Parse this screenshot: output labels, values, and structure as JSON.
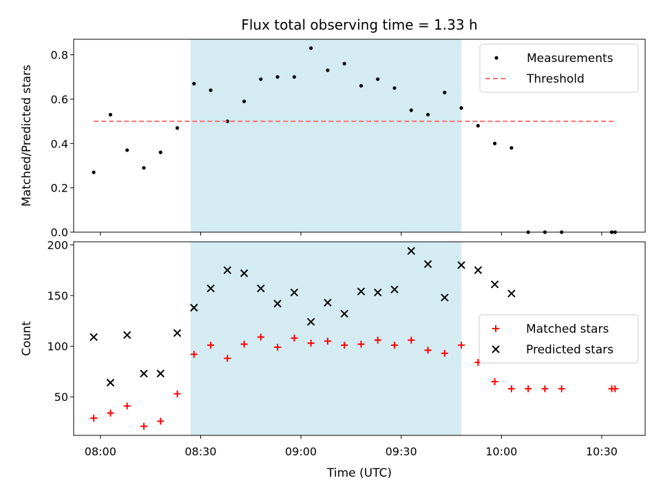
{
  "chart_data": [
    {
      "type": "scatter",
      "title": "Flux total observing time = 1.33 h",
      "ylabel": "Matched/Predicted stars",
      "ylim": [
        0,
        0.87
      ],
      "yticks": [
        0.0,
        0.2,
        0.4,
        0.6,
        0.8
      ],
      "ytick_labels": [
        "0.0",
        "0.2",
        "0.4",
        "0.6",
        "0.8"
      ],
      "grid": false,
      "legend_placement": "top-right",
      "shaded_range_minutes": [
        27,
        108
      ],
      "shade_color": "#add8e6",
      "series": [
        {
          "name": "Measurements",
          "marker": "dot",
          "color": "#000000",
          "x_minutes": [
            -2,
            3,
            8,
            13,
            18,
            23,
            28,
            33,
            38,
            43,
            48,
            53,
            58,
            63,
            68,
            73,
            78,
            83,
            88,
            93,
            98,
            103,
            108,
            113,
            118,
            123,
            128,
            133,
            138,
            153,
            154
          ],
          "y": [
            0.27,
            0.53,
            0.37,
            0.29,
            0.36,
            0.47,
            0.67,
            0.64,
            0.5,
            0.59,
            0.69,
            0.7,
            0.7,
            0.83,
            0.73,
            0.76,
            0.66,
            0.69,
            0.65,
            0.55,
            0.53,
            0.63,
            0.56,
            0.48,
            0.4,
            0.38,
            0.0,
            0.0,
            0.0,
            0.0,
            0.0
          ]
        },
        {
          "name": "Threshold",
          "style": "dashed",
          "color": "#ff7070",
          "x_minutes": [
            -2,
            154
          ],
          "y": [
            0.5,
            0.5
          ]
        }
      ]
    },
    {
      "type": "scatter",
      "xlabel": "Time (UTC)",
      "ylabel": "Count",
      "ylim": [
        12,
        203
      ],
      "yticks": [
        50,
        100,
        150,
        200
      ],
      "ytick_labels": [
        "50",
        "100",
        "150",
        "200"
      ],
      "xlim_minutes": [
        -8,
        163
      ],
      "xticks_minutes": [
        0,
        30,
        60,
        90,
        120,
        150
      ],
      "xtick_labels": [
        "08:00",
        "08:30",
        "09:00",
        "09:30",
        "10:00",
        "10:30"
      ],
      "grid": false,
      "legend_placement": "center-right",
      "shaded_range_minutes": [
        27,
        108
      ],
      "shade_color": "#add8e6",
      "series": [
        {
          "name": "Matched stars",
          "marker": "plus",
          "color": "#ff0000",
          "x_minutes": [
            -2,
            3,
            8,
            13,
            18,
            23,
            28,
            33,
            38,
            43,
            48,
            53,
            58,
            63,
            68,
            73,
            78,
            83,
            88,
            93,
            98,
            103,
            108,
            113,
            118,
            123,
            128,
            133,
            138,
            153,
            154
          ],
          "y": [
            29,
            34,
            41,
            21,
            26,
            53,
            92,
            101,
            88,
            102,
            109,
            99,
            108,
            103,
            105,
            101,
            102,
            106,
            101,
            106,
            96,
            93,
            101,
            84,
            65,
            58,
            58,
            58,
            58,
            58,
            58
          ]
        },
        {
          "name": "Predicted stars",
          "marker": "x",
          "color": "#000000",
          "x_minutes": [
            -2,
            3,
            8,
            13,
            18,
            23,
            28,
            33,
            38,
            43,
            48,
            53,
            58,
            63,
            68,
            73,
            78,
            83,
            88,
            93,
            98,
            103,
            108,
            113,
            118,
            123
          ],
          "y": [
            109,
            64,
            111,
            73,
            73,
            113,
            138,
            157,
            175,
            172,
            157,
            142,
            153,
            124,
            143,
            132,
            154,
            153,
            156,
            194,
            181,
            148,
            180,
            175,
            161,
            152
          ]
        }
      ]
    }
  ]
}
